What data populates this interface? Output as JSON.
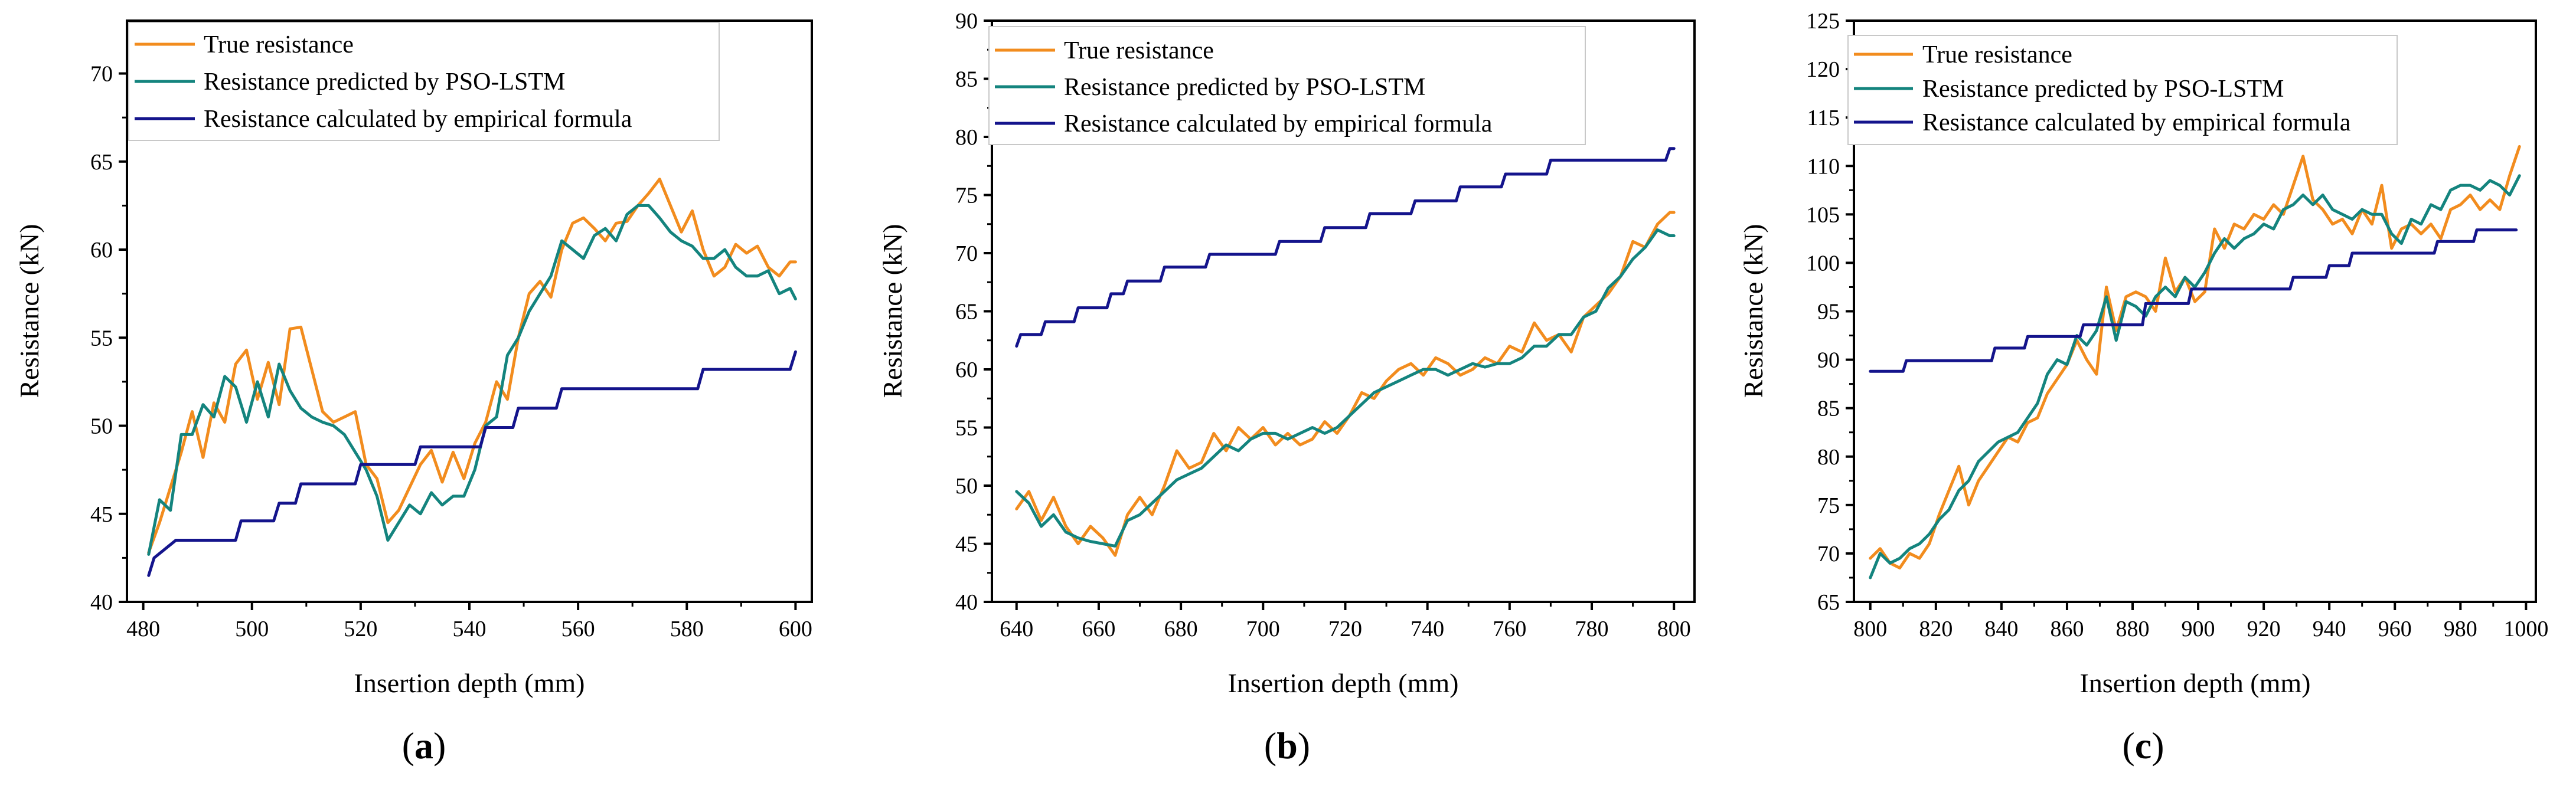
{
  "figure": {
    "legend_labels": [
      "True resistance",
      "Resistance predicted by PSO-LSTM",
      "Resistance calculated by empirical formula"
    ],
    "colors": {
      "true": "#F28C1E",
      "pso": "#14847E",
      "emp": "#14148C",
      "axis": "#000000"
    },
    "x_axis_label": "Insertion depth (mm)",
    "y_axis_label": "Resistance (kN)"
  },
  "chart_data": [
    {
      "type": "line",
      "panel_label": "a",
      "xlabel": "Insertion depth (mm)",
      "ylabel": "Resistance (kN)",
      "xlim": [
        477,
        603
      ],
      "ylim": [
        40,
        73
      ],
      "x_ticks": [
        480,
        500,
        520,
        540,
        560,
        580,
        600
      ],
      "y_ticks": [
        40,
        45,
        50,
        55,
        60,
        65,
        70
      ],
      "legend": "top-left",
      "series": [
        {
          "name": "True resistance",
          "color": "#F28C1E",
          "x": [
            481,
            483,
            485,
            487,
            489,
            491,
            493,
            495,
            497,
            499,
            501,
            503,
            505,
            507,
            509,
            511,
            513,
            515,
            517,
            519,
            521,
            523,
            525,
            527,
            529,
            531,
            533,
            535,
            537,
            539,
            541,
            543,
            545,
            547,
            549,
            551,
            553,
            555,
            557,
            559,
            561,
            563,
            565,
            567,
            569,
            571,
            573,
            575,
            577,
            579,
            581,
            583,
            585,
            587,
            589,
            591,
            593,
            595,
            597,
            599,
            600
          ],
          "y": [
            42.8,
            44.5,
            46.5,
            48.5,
            50.8,
            48.2,
            51.3,
            50.2,
            53.5,
            54.3,
            51.5,
            53.6,
            51.2,
            55.5,
            55.6,
            53.2,
            50.8,
            50.2,
            50.5,
            50.8,
            47.8,
            47.0,
            44.5,
            45.2,
            46.5,
            47.8,
            48.6,
            46.8,
            48.5,
            47.0,
            49.0,
            50.2,
            52.5,
            51.5,
            55.0,
            57.5,
            58.2,
            57.3,
            60.0,
            61.5,
            61.8,
            61.2,
            60.5,
            61.5,
            61.6,
            62.5,
            63.2,
            64.0,
            62.5,
            61.0,
            62.2,
            60.0,
            58.5,
            59.0,
            60.3,
            59.8,
            60.2,
            59.0,
            58.5,
            59.3,
            59.3
          ]
        },
        {
          "name": "Resistance predicted by PSO-LSTM",
          "color": "#14847E",
          "x": [
            481,
            483,
            485,
            487,
            489,
            491,
            493,
            495,
            497,
            499,
            501,
            503,
            505,
            507,
            509,
            511,
            513,
            515,
            517,
            519,
            521,
            523,
            525,
            527,
            529,
            531,
            533,
            535,
            537,
            539,
            541,
            543,
            545,
            547,
            549,
            551,
            553,
            555,
            557,
            559,
            561,
            563,
            565,
            567,
            569,
            571,
            573,
            575,
            577,
            579,
            581,
            583,
            585,
            587,
            589,
            591,
            593,
            595,
            597,
            599,
            600
          ],
          "y": [
            42.7,
            45.8,
            45.2,
            49.5,
            49.5,
            51.2,
            50.5,
            52.8,
            52.2,
            50.2,
            52.5,
            50.5,
            53.5,
            52.0,
            51.0,
            50.5,
            50.2,
            50.0,
            49.5,
            48.5,
            47.5,
            46.0,
            43.5,
            44.5,
            45.5,
            45.0,
            46.2,
            45.5,
            46.0,
            46.0,
            47.5,
            50.0,
            50.5,
            54.0,
            55.0,
            56.5,
            57.5,
            58.5,
            60.5,
            60.0,
            59.5,
            60.8,
            61.2,
            60.5,
            62.0,
            62.5,
            62.5,
            61.8,
            61.0,
            60.5,
            60.2,
            59.5,
            59.5,
            60.0,
            59.0,
            58.5,
            58.5,
            58.8,
            57.5,
            57.8,
            57.2
          ]
        },
        {
          "name": "Resistance calculated by empirical formula",
          "color": "#14148C",
          "x": [
            481,
            482,
            486,
            497,
            498,
            504,
            505,
            508,
            509,
            519,
            520,
            530,
            531,
            542,
            543,
            548,
            549,
            556,
            557,
            582,
            583,
            599,
            600
          ],
          "y": [
            41.5,
            42.5,
            43.5,
            43.5,
            44.6,
            44.6,
            45.6,
            45.6,
            46.7,
            46.7,
            47.8,
            47.8,
            48.8,
            48.8,
            49.9,
            49.9,
            51.0,
            51.0,
            52.1,
            52.1,
            53.2,
            53.2,
            54.2
          ]
        }
      ]
    },
    {
      "type": "line",
      "panel_label": "b",
      "xlabel": "Insertion depth (mm)",
      "ylabel": "Resistance (kN)",
      "xlim": [
        634,
        805
      ],
      "ylim": [
        40,
        90
      ],
      "x_ticks": [
        640,
        660,
        680,
        700,
        720,
        740,
        760,
        780,
        800
      ],
      "y_ticks": [
        40,
        45,
        50,
        55,
        60,
        65,
        70,
        75,
        80,
        85,
        90
      ],
      "legend": "top-left",
      "series": [
        {
          "name": "True resistance",
          "color": "#F28C1E",
          "x": [
            640,
            643,
            646,
            649,
            652,
            655,
            658,
            661,
            664,
            667,
            670,
            673,
            676,
            679,
            682,
            685,
            688,
            691,
            694,
            697,
            700,
            703,
            706,
            709,
            712,
            715,
            718,
            721,
            724,
            727,
            730,
            733,
            736,
            739,
            742,
            745,
            748,
            751,
            754,
            757,
            760,
            763,
            766,
            769,
            772,
            775,
            778,
            781,
            784,
            787,
            790,
            793,
            796,
            799,
            800
          ],
          "y": [
            48.0,
            49.5,
            47.0,
            49.0,
            46.5,
            45.0,
            46.5,
            45.5,
            44.0,
            47.5,
            49.0,
            47.5,
            50.0,
            53.0,
            51.5,
            52.0,
            54.5,
            53.0,
            55.0,
            54.0,
            55.0,
            53.5,
            54.5,
            53.5,
            54.0,
            55.5,
            54.5,
            56.0,
            58.0,
            57.5,
            59.0,
            60.0,
            60.5,
            59.5,
            61.0,
            60.5,
            59.5,
            60.0,
            61.0,
            60.5,
            62.0,
            61.5,
            64.0,
            62.5,
            63.0,
            61.5,
            64.5,
            65.5,
            66.5,
            68.0,
            71.0,
            70.5,
            72.5,
            73.5,
            73.5
          ]
        },
        {
          "name": "Resistance predicted by PSO-LSTM",
          "color": "#14847E",
          "x": [
            640,
            643,
            646,
            649,
            652,
            655,
            658,
            661,
            664,
            667,
            670,
            673,
            676,
            679,
            682,
            685,
            688,
            691,
            694,
            697,
            700,
            703,
            706,
            709,
            712,
            715,
            718,
            721,
            724,
            727,
            730,
            733,
            736,
            739,
            742,
            745,
            748,
            751,
            754,
            757,
            760,
            763,
            766,
            769,
            772,
            775,
            778,
            781,
            784,
            787,
            790,
            793,
            796,
            799,
            800
          ],
          "y": [
            49.5,
            48.5,
            46.5,
            47.5,
            46.0,
            45.5,
            45.2,
            45.0,
            44.8,
            47.0,
            47.5,
            48.5,
            49.5,
            50.5,
            51.0,
            51.5,
            52.5,
            53.5,
            53.0,
            54.0,
            54.5,
            54.5,
            54.0,
            54.5,
            55.0,
            54.5,
            55.0,
            56.0,
            57.0,
            58.0,
            58.5,
            59.0,
            59.5,
            60.0,
            60.0,
            59.5,
            60.0,
            60.5,
            60.2,
            60.5,
            60.5,
            61.0,
            62.0,
            62.0,
            63.0,
            63.0,
            64.5,
            65.0,
            67.0,
            68.0,
            69.5,
            70.5,
            72.0,
            71.5,
            71.5
          ]
        },
        {
          "name": "Resistance calculated by empirical formula",
          "color": "#14148C",
          "x": [
            640,
            641,
            643,
            646,
            647,
            654,
            655,
            658,
            659,
            662,
            663,
            666,
            667,
            675,
            676,
            686,
            687,
            692,
            693,
            703,
            704,
            714,
            715,
            725,
            726,
            736,
            737,
            747,
            748,
            758,
            759,
            769,
            770,
            780,
            781,
            798,
            799,
            800
          ],
          "y": [
            62.0,
            63.0,
            63.0,
            63.0,
            64.1,
            64.1,
            65.3,
            65.3,
            65.3,
            65.3,
            66.5,
            66.5,
            67.6,
            67.6,
            68.8,
            68.8,
            69.9,
            69.9,
            69.9,
            69.9,
            71.0,
            71.0,
            72.2,
            72.2,
            73.4,
            73.4,
            74.5,
            74.5,
            75.7,
            75.7,
            76.8,
            76.8,
            78.0,
            78.0,
            78.0,
            78.0,
            79.0,
            79.0
          ]
        }
      ]
    },
    {
      "type": "line",
      "panel_label": "c",
      "xlabel": "Insertion depth (mm)",
      "ylabel": "Resistance (kN)",
      "xlim": [
        795,
        1003
      ],
      "ylim": [
        65,
        125
      ],
      "x_ticks": [
        800,
        820,
        840,
        860,
        880,
        900,
        920,
        940,
        960,
        980,
        1000
      ],
      "y_ticks": [
        65,
        70,
        75,
        80,
        85,
        90,
        95,
        100,
        105,
        110,
        115,
        120,
        125
      ],
      "legend": "top-left",
      "series": [
        {
          "name": "True resistance",
          "color": "#F28C1E",
          "x": [
            800,
            803,
            806,
            809,
            812,
            815,
            818,
            821,
            824,
            827,
            830,
            833,
            836,
            839,
            842,
            845,
            848,
            851,
            854,
            857,
            860,
            863,
            866,
            869,
            872,
            875,
            878,
            881,
            884,
            887,
            890,
            893,
            896,
            899,
            902,
            905,
            908,
            911,
            914,
            917,
            920,
            923,
            926,
            929,
            932,
            935,
            938,
            941,
            944,
            947,
            950,
            953,
            956,
            959,
            962,
            965,
            968,
            971,
            974,
            977,
            980,
            983,
            986,
            989,
            992,
            995,
            998
          ],
          "y": [
            69.5,
            70.5,
            69.0,
            68.5,
            70.0,
            69.5,
            71.0,
            74.0,
            76.5,
            79.0,
            75.0,
            77.5,
            79.0,
            80.5,
            82.0,
            81.5,
            83.5,
            84.0,
            86.5,
            88.0,
            89.5,
            92.0,
            90.0,
            88.5,
            97.5,
            93.0,
            96.5,
            97.0,
            96.5,
            95.0,
            100.5,
            97.0,
            98.5,
            96.0,
            97.0,
            103.5,
            101.5,
            104.0,
            103.5,
            105.0,
            104.5,
            106.0,
            105.0,
            108.0,
            111.0,
            106.5,
            105.5,
            104.0,
            104.5,
            103.0,
            105.5,
            104.0,
            108.0,
            101.5,
            103.5,
            104.0,
            103.0,
            104.0,
            102.5,
            105.5,
            106.0,
            107.0,
            105.5,
            106.5,
            105.5,
            109.0,
            112.0
          ]
        },
        {
          "name": "Resistance predicted by PSO-LSTM",
          "color": "#14847E",
          "x": [
            800,
            803,
            806,
            809,
            812,
            815,
            818,
            821,
            824,
            827,
            830,
            833,
            836,
            839,
            842,
            845,
            848,
            851,
            854,
            857,
            860,
            863,
            866,
            869,
            872,
            875,
            878,
            881,
            884,
            887,
            890,
            893,
            896,
            899,
            902,
            905,
            908,
            911,
            914,
            917,
            920,
            923,
            926,
            929,
            932,
            935,
            938,
            941,
            944,
            947,
            950,
            953,
            956,
            959,
            962,
            965,
            968,
            971,
            974,
            977,
            980,
            983,
            986,
            989,
            992,
            995,
            998
          ],
          "y": [
            67.5,
            70.0,
            69.0,
            69.5,
            70.5,
            71.0,
            72.0,
            73.5,
            74.5,
            76.5,
            77.5,
            79.5,
            80.5,
            81.5,
            82.0,
            82.5,
            84.0,
            85.5,
            88.5,
            90.0,
            89.5,
            92.5,
            91.5,
            93.0,
            96.5,
            92.0,
            96.0,
            95.5,
            94.5,
            96.5,
            97.5,
            96.5,
            98.5,
            97.5,
            99.0,
            101.0,
            102.5,
            101.5,
            102.5,
            103.0,
            104.0,
            103.5,
            105.5,
            106.0,
            107.0,
            106.0,
            107.0,
            105.5,
            105.0,
            104.5,
            105.5,
            105.0,
            105.0,
            103.0,
            102.0,
            104.5,
            104.0,
            106.0,
            105.5,
            107.5,
            108.0,
            108.0,
            107.5,
            108.5,
            108.0,
            107.0,
            109.0
          ]
        },
        {
          "name": "Resistance calculated by empirical formula",
          "color": "#14148C",
          "x": [
            800,
            810,
            811,
            837,
            838,
            843,
            844,
            847,
            848,
            864,
            865,
            883,
            884,
            897,
            898,
            912,
            913,
            928,
            929,
            939,
            940,
            946,
            947,
            963,
            964,
            972,
            973,
            984,
            985,
            996,
            997
          ],
          "y": [
            88.8,
            88.8,
            89.9,
            89.9,
            91.2,
            91.2,
            91.2,
            91.2,
            92.4,
            92.4,
            93.6,
            93.6,
            95.8,
            95.8,
            97.3,
            97.3,
            97.3,
            97.3,
            98.5,
            98.5,
            99.7,
            99.7,
            101.0,
            101.0,
            101.0,
            101.0,
            102.2,
            102.2,
            103.4,
            103.4,
            103.4
          ]
        }
      ]
    }
  ]
}
